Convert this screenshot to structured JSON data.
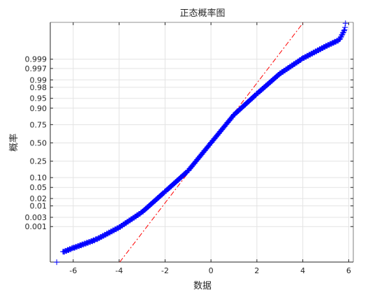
{
  "chart_data": {
    "type": "scatter",
    "title": "正态概率图",
    "xlabel": "数据",
    "ylabel": "概率",
    "xlim": [
      -7,
      6.2
    ],
    "x_ticks": [
      -6,
      -4,
      -2,
      0,
      2,
      4,
      6
    ],
    "x_tick_labels": [
      "-6",
      "-4",
      "-2",
      "0",
      "2",
      "4",
      "6"
    ],
    "probability_ticks": [
      0.001,
      0.003,
      0.01,
      0.02,
      0.05,
      0.1,
      0.25,
      0.5,
      0.75,
      0.9,
      0.95,
      0.98,
      0.99,
      0.997,
      0.999
    ],
    "probability_tick_labels": [
      "0.001",
      "0.003",
      "0.01",
      "0.02",
      "0.05",
      "0.10",
      "0.25",
      "0.50",
      "0.75",
      "0.90",
      "0.95",
      "0.98",
      "0.99",
      "0.997",
      "0.999"
    ],
    "grid": true,
    "series": [
      {
        "kind": "markers",
        "marker": "+",
        "color": "#0000ff",
        "points": [
          {
            "x": -6.72,
            "p": 5.3e-06
          },
          {
            "x": -6.45,
            "p": 2.8e-05
          },
          {
            "x": -6.0,
            "p": 5.2e-05
          },
          {
            "x": -5.0,
            "p": 0.00018
          },
          {
            "x": -4.0,
            "p": 0.0009
          },
          {
            "x": -3.0,
            "p": 0.0053
          },
          {
            "x": -2.0,
            "p": 0.036
          },
          {
            "x": -1.0,
            "p": 0.15
          },
          {
            "x": 0.0,
            "p": 0.5
          },
          {
            "x": 1.0,
            "p": 0.85
          },
          {
            "x": 2.0,
            "p": 0.965
          },
          {
            "x": 3.0,
            "p": 0.9947
          },
          {
            "x": 4.0,
            "p": 0.9991
          },
          {
            "x": 5.0,
            "p": 0.99982
          },
          {
            "x": 5.6,
            "p": 0.99993
          },
          {
            "x": 5.82,
            "p": 0.999985
          },
          {
            "x": 5.86,
            "p": 0.999995
          }
        ]
      },
      {
        "kind": "reference-line",
        "style": "dash-dot",
        "color": "#ff0000",
        "points": [
          {
            "x": -4.0,
            "p": 4.7e-06
          },
          {
            "x": 4.0,
            "p": 0.999995
          }
        ]
      }
    ]
  }
}
